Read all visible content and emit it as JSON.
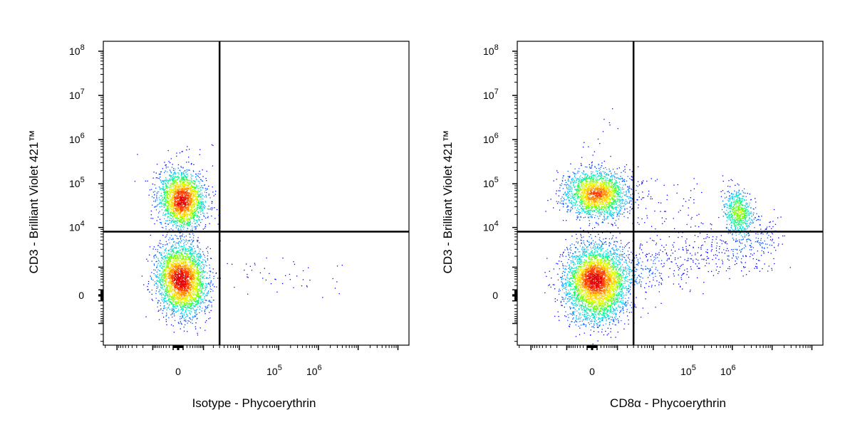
{
  "chart_data": [
    {
      "type": "scatter",
      "subtype": "flow-cytometry-density-dot-plot",
      "xlabel": "Isotype - Phycoerythrin",
      "ylabel": "CD3 - Brilliant Violet 421™",
      "x_scale": "biexponential",
      "y_scale": "biexponential",
      "x_tick_labels": [
        {
          "value": 0,
          "label": "0"
        },
        {
          "value": 100000,
          "label": "10",
          "exp": "5"
        },
        {
          "value": 1000000,
          "label": "10",
          "exp": "6"
        }
      ],
      "y_tick_labels": [
        {
          "value": 0,
          "label": "0"
        },
        {
          "value": 10000,
          "label": "10",
          "exp": "4"
        },
        {
          "value": 100000,
          "label": "10",
          "exp": "5"
        },
        {
          "value": 1000000,
          "label": "10",
          "exp": "6"
        },
        {
          "value": 10000000,
          "label": "10",
          "exp": "7"
        },
        {
          "value": 100000000,
          "label": "10",
          "exp": "8"
        }
      ],
      "quadrant_gate": {
        "x": 3000,
        "y": 8000
      },
      "populations": [
        {
          "x_center": 0,
          "y_center": 40000,
          "relative_density": "high"
        },
        {
          "x_center": 0,
          "y_center": 0,
          "relative_density": "high"
        },
        {
          "x_center": 30000,
          "y_center": 0,
          "relative_density": "sparse"
        }
      ],
      "grid": false,
      "legend": "none",
      "density_colormap": [
        "#0000ff",
        "#00c8ff",
        "#00ff80",
        "#c8ff00",
        "#ffb000",
        "#ff0000"
      ]
    },
    {
      "type": "scatter",
      "subtype": "flow-cytometry-density-dot-plot",
      "xlabel": "CD8α - Phycoerythrin",
      "ylabel": "CD3 - Brilliant Violet 421™",
      "x_scale": "biexponential",
      "y_scale": "biexponential",
      "x_tick_labels": [
        {
          "value": 0,
          "label": "0"
        },
        {
          "value": 100000,
          "label": "10",
          "exp": "5"
        },
        {
          "value": 1000000,
          "label": "10",
          "exp": "6"
        }
      ],
      "y_tick_labels": [
        {
          "value": 0,
          "label": "0"
        },
        {
          "value": 10000,
          "label": "10",
          "exp": "4"
        },
        {
          "value": 100000,
          "label": "10",
          "exp": "5"
        },
        {
          "value": 1000000,
          "label": "10",
          "exp": "6"
        },
        {
          "value": 10000000,
          "label": "10",
          "exp": "7"
        },
        {
          "value": 100000000,
          "label": "10",
          "exp": "8"
        }
      ],
      "quadrant_gate": {
        "x": 3000,
        "y": 8000
      },
      "populations": [
        {
          "x_center": 0,
          "y_center": 50000,
          "relative_density": "high"
        },
        {
          "x_center": 0,
          "y_center": 0,
          "relative_density": "very high"
        },
        {
          "x_center": 800000,
          "y_center": 25000,
          "relative_density": "medium"
        },
        {
          "x_center": 50000,
          "y_center": 3000,
          "relative_density": "sparse bridge"
        }
      ],
      "grid": false,
      "legend": "none",
      "density_colormap": [
        "#0000ff",
        "#00c8ff",
        "#00ff80",
        "#c8ff00",
        "#ffb000",
        "#ff0000"
      ]
    }
  ]
}
